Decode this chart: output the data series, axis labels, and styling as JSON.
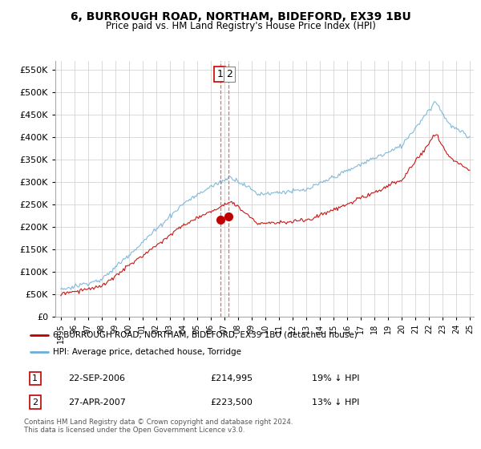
{
  "title": "6, BURROUGH ROAD, NORTHAM, BIDEFORD, EX39 1BU",
  "subtitle": "Price paid vs. HM Land Registry's House Price Index (HPI)",
  "legend_line1": "6, BURROUGH ROAD, NORTHAM, BIDEFORD, EX39 1BU (detached house)",
  "legend_line2": "HPI: Average price, detached house, Torridge",
  "footer": "Contains HM Land Registry data © Crown copyright and database right 2024.\nThis data is licensed under the Open Government Licence v3.0.",
  "transaction1_label": "1",
  "transaction1_date": "22-SEP-2006",
  "transaction1_price": "£214,995",
  "transaction1_hpi": "19% ↓ HPI",
  "transaction2_label": "2",
  "transaction2_date": "27-APR-2007",
  "transaction2_price": "£223,500",
  "transaction2_hpi": "13% ↓ HPI",
  "ylim": [
    0,
    570000
  ],
  "yticks": [
    0,
    50000,
    100000,
    150000,
    200000,
    250000,
    300000,
    350000,
    400000,
    450000,
    500000,
    550000
  ],
  "hpi_color": "#6baed6",
  "price_color": "#c00000",
  "vline_color": "#e06060",
  "marker1_x": 2006.73,
  "marker2_x": 2007.32,
  "marker1_y": 214995,
  "marker2_y": 223500,
  "xmin": 1995,
  "xmax": 2025
}
